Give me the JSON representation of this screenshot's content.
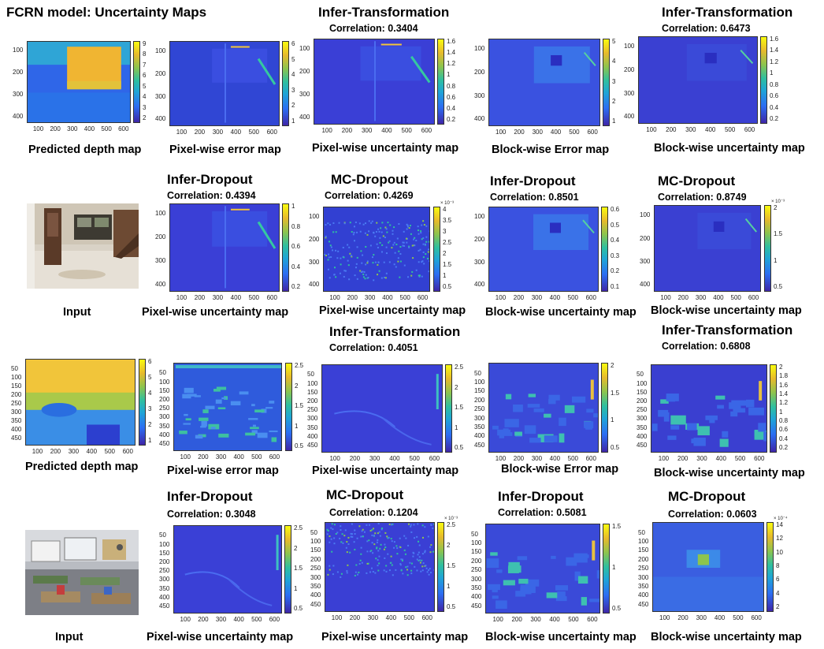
{
  "figure": {
    "title": "FCRN model: Uncertainty Maps"
  },
  "labels": {
    "infer_transformation": "Infer-Transformation",
    "infer_dropout": "Infer-Dropout",
    "mc_dropout": "MC-Dropout",
    "predicted_depth_map": "Predicted depth map",
    "pixel_wise_error_map": "Pixel-wise error map",
    "pixel_wise_uncertainty_map": "Pixel-wise uncertainty map",
    "block_wise_error_map": "Block-wise Error map",
    "block_wise_uncertainty_map": "Block-wise uncertainty map",
    "input": "Input"
  },
  "correlations": {
    "r1_infer_transformation_pixel": "Correlation: 0.3404",
    "r1_infer_transformation_block": "Correlation: 0.6473",
    "r2_infer_dropout_pixel": "Correlation: 0.4394",
    "r2_mc_dropout_pixel": "Correlation: 0.4269",
    "r2_infer_dropout_block": "Correlation: 0.8501",
    "r2_mc_dropout_block": "Correlation: 0.8749",
    "r3_infer_transformation_pixel": "Correlation: 0.4051",
    "r3_infer_transformation_block": "Correlation: 0.6808",
    "r4_infer_dropout_pixel": "Correlation: 0.3048",
    "r4_mc_dropout_pixel": "Correlation: 0.1204",
    "r4_infer_dropout_block": "Correlation: 0.5081",
    "r4_mc_dropout_block": "Correlation: 0.0603"
  },
  "colors": {
    "low": "#3e26a8",
    "mid": "#2fbf9f",
    "high": "#f9fb0e"
  },
  "chart_data": {
    "type": "heatmap",
    "scenes": [
      {
        "x_ticks": [
          "100",
          "200",
          "300",
          "400",
          "500",
          "600"
        ],
        "y_ticks": [
          "100",
          "200",
          "300",
          "400"
        ],
        "maps": [
          {
            "caption": "Predicted depth map",
            "colorbar_ticks": [
              "9",
              "8",
              "7",
              "6",
              "5",
              "4",
              "3",
              "2"
            ]
          },
          {
            "caption": "Pixel-wise error map",
            "colorbar_ticks": [
              "6",
              "5",
              "4",
              "3",
              "2",
              "1"
            ]
          },
          {
            "caption": "Pixel-wise uncertainty map",
            "method": "Infer-Transformation",
            "correlation": 0.3404,
            "colorbar_ticks": [
              "1.6",
              "1.4",
              "1.2",
              "1",
              "0.8",
              "0.6",
              "0.4",
              "0.2"
            ]
          },
          {
            "caption": "Block-wise Error map",
            "colorbar_ticks": [
              "5",
              "4",
              "3",
              "2",
              "1"
            ]
          },
          {
            "caption": "Block-wise uncertainty map",
            "method": "Infer-Transformation",
            "correlation": 0.6473,
            "colorbar_ticks": [
              "1.6",
              "1.4",
              "1.2",
              "1",
              "0.8",
              "0.6",
              "0.4",
              "0.2"
            ]
          },
          {
            "caption": "Pixel-wise uncertainty map",
            "method": "Infer-Dropout",
            "correlation": 0.4394,
            "colorbar_ticks": [
              "1",
              "0.8",
              "0.6",
              "0.4",
              "0.2"
            ]
          },
          {
            "caption": "Pixel-wise uncertainty map",
            "method": "MC-Dropout",
            "correlation": 0.4269,
            "colorbar_multiplier": "× 10⁻³",
            "colorbar_ticks": [
              "4",
              "3.5",
              "3",
              "2.5",
              "2",
              "1.5",
              "1",
              "0.5"
            ]
          },
          {
            "caption": "Block-wise uncertainty map",
            "method": "Infer-Dropout",
            "correlation": 0.8501,
            "colorbar_ticks": [
              "0.6",
              "0.5",
              "0.4",
              "0.3",
              "0.2",
              "0.1"
            ]
          },
          {
            "caption": "Block-wise uncertainty map",
            "method": "MC-Dropout",
            "correlation": 0.8749,
            "colorbar_multiplier": "× 10⁻³",
            "colorbar_ticks": [
              "2",
              "1.5",
              "1",
              "0.5"
            ]
          }
        ]
      },
      {
        "x_ticks": [
          "100",
          "200",
          "300",
          "400",
          "500",
          "600"
        ],
        "y_ticks": [
          "50",
          "100",
          "150",
          "200",
          "250",
          "300",
          "350",
          "400",
          "450"
        ],
        "maps": [
          {
            "caption": "Predicted depth map",
            "colorbar_ticks": [
              "6",
              "5",
              "4",
              "3",
              "2",
              "1"
            ]
          },
          {
            "caption": "Pixel-wise error map",
            "colorbar_ticks": [
              "2.5",
              "2",
              "1.5",
              "1",
              "0.5"
            ]
          },
          {
            "caption": "Pixel-wise uncertainty map",
            "method": "Infer-Transformation",
            "correlation": 0.4051,
            "colorbar_ticks": [
              "2.5",
              "2",
              "1.5",
              "1",
              "0.5"
            ]
          },
          {
            "caption": "Block-wise Error map",
            "colorbar_ticks": [
              "2",
              "1.5",
              "1",
              "0.5"
            ]
          },
          {
            "caption": "Block-wise uncertainty map",
            "method": "Infer-Transformation",
            "correlation": 0.6808,
            "colorbar_ticks": [
              "2",
              "1.8",
              "1.6",
              "1.4",
              "1.2",
              "1",
              "0.8",
              "0.6",
              "0.4",
              "0.2"
            ]
          },
          {
            "caption": "Pixel-wise uncertainty map",
            "method": "Infer-Dropout",
            "correlation": 0.3048,
            "colorbar_ticks": [
              "2.5",
              "2",
              "1.5",
              "1",
              "0.5"
            ]
          },
          {
            "caption": "Pixel-wise uncertainty map",
            "method": "MC-Dropout",
            "correlation": 0.1204,
            "colorbar_multiplier": "× 10⁻³",
            "colorbar_ticks": [
              "2.5",
              "2",
              "1.5",
              "1",
              "0.5"
            ]
          },
          {
            "caption": "Block-wise uncertainty map",
            "method": "Infer-Dropout",
            "correlation": 0.5081,
            "colorbar_ticks": [
              "1.5",
              "1",
              "0.5"
            ]
          },
          {
            "caption": "Block-wise uncertainty map",
            "method": "MC-Dropout",
            "correlation": 0.0603,
            "colorbar_multiplier": "× 10⁻⁴",
            "colorbar_ticks": [
              "14",
              "12",
              "10",
              "8",
              "6",
              "4",
              "2"
            ]
          }
        ]
      }
    ]
  }
}
